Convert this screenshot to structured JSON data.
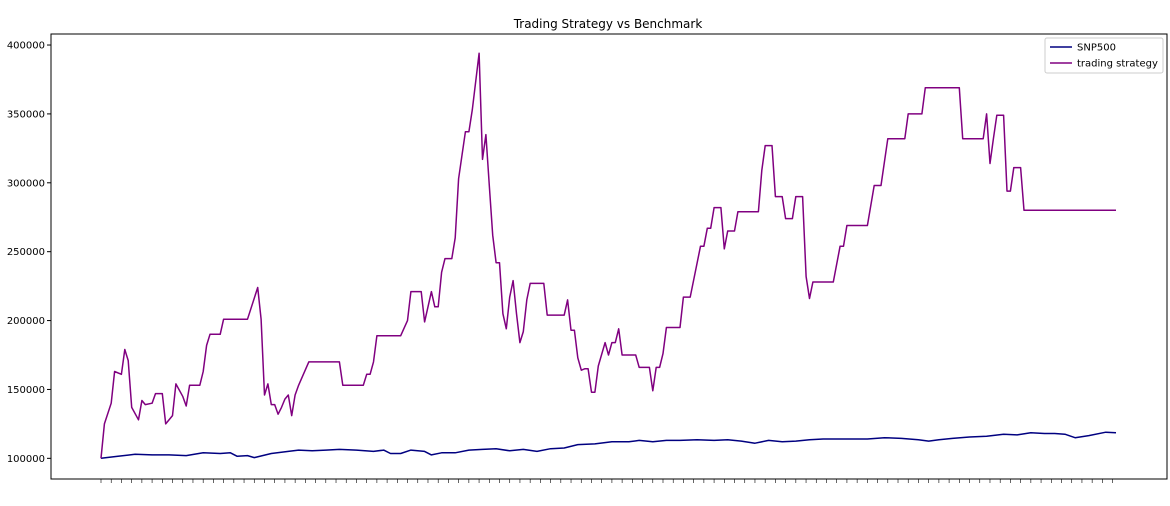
{
  "chart_data": {
    "type": "line",
    "title": "Trading Strategy vs Benchmark",
    "xlabel": "",
    "ylabel": "",
    "ylim": [
      85000,
      408000
    ],
    "yticks": [
      100000,
      150000,
      200000,
      250000,
      300000,
      350000,
      400000
    ],
    "ytick_labels": [
      "100000",
      "150000",
      "200000",
      "250000",
      "300000",
      "350000",
      "400000"
    ],
    "legend_position": "top-right",
    "grid": false,
    "n_points": 298,
    "series": [
      {
        "name": "SNP500",
        "color": "#000080",
        "points": [
          [
            0,
            100000
          ],
          [
            5,
            101500
          ],
          [
            10,
            103000
          ],
          [
            15,
            102500
          ],
          [
            20,
            102500
          ],
          [
            25,
            102000
          ],
          [
            30,
            104000
          ],
          [
            35,
            103500
          ],
          [
            38,
            104000
          ],
          [
            40,
            101500
          ],
          [
            43,
            102000
          ],
          [
            45,
            100500
          ],
          [
            50,
            103500
          ],
          [
            55,
            105000
          ],
          [
            58,
            106000
          ],
          [
            62,
            105500
          ],
          [
            66,
            106000
          ],
          [
            70,
            106500
          ],
          [
            75,
            106000
          ],
          [
            80,
            105000
          ],
          [
            83,
            106000
          ],
          [
            85,
            103500
          ],
          [
            88,
            103500
          ],
          [
            91,
            106000
          ],
          [
            95,
            105000
          ],
          [
            97,
            102500
          ],
          [
            100,
            104000
          ],
          [
            104,
            104000
          ],
          [
            108,
            106000
          ],
          [
            112,
            106500
          ],
          [
            116,
            107000
          ],
          [
            120,
            105500
          ],
          [
            124,
            106500
          ],
          [
            128,
            105000
          ],
          [
            132,
            107000
          ],
          [
            136,
            107500
          ],
          [
            140,
            110000
          ],
          [
            145,
            110500
          ],
          [
            150,
            112000
          ],
          [
            155,
            112000
          ],
          [
            158,
            113000
          ],
          [
            162,
            112000
          ],
          [
            166,
            113000
          ],
          [
            170,
            113000
          ],
          [
            175,
            113500
          ],
          [
            180,
            113000
          ],
          [
            184,
            113500
          ],
          [
            188,
            112500
          ],
          [
            192,
            111000
          ],
          [
            196,
            113000
          ],
          [
            200,
            112000
          ],
          [
            204,
            112500
          ],
          [
            208,
            113500
          ],
          [
            212,
            114000
          ],
          [
            216,
            114000
          ],
          [
            220,
            114000
          ],
          [
            225,
            114000
          ],
          [
            230,
            115000
          ],
          [
            235,
            114500
          ],
          [
            240,
            113500
          ],
          [
            243,
            112500
          ],
          [
            246,
            113500
          ],
          [
            250,
            114500
          ],
          [
            255,
            115500
          ],
          [
            260,
            116000
          ],
          [
            265,
            117500
          ],
          [
            269,
            117000
          ],
          [
            273,
            118500
          ],
          [
            277,
            118000
          ],
          [
            280,
            118000
          ],
          [
            283,
            117500
          ],
          [
            286,
            115000
          ],
          [
            290,
            116500
          ],
          [
            295,
            119000
          ],
          [
            298,
            118500
          ]
        ]
      },
      {
        "name": "trading strategy",
        "color": "#800080",
        "points": [
          [
            0,
            100000
          ],
          [
            1,
            125000
          ],
          [
            3,
            140000
          ],
          [
            4,
            163000
          ],
          [
            6,
            161000
          ],
          [
            7,
            179000
          ],
          [
            8,
            171000
          ],
          [
            9,
            137000
          ],
          [
            11,
            128000
          ],
          [
            12,
            142000
          ],
          [
            13,
            139000
          ],
          [
            15,
            140000
          ],
          [
            16,
            147000
          ],
          [
            18,
            147000
          ],
          [
            19,
            125000
          ],
          [
            21,
            131000
          ],
          [
            22,
            154000
          ],
          [
            24,
            145000
          ],
          [
            25,
            138000
          ],
          [
            26,
            153000
          ],
          [
            29,
            153000
          ],
          [
            30,
            163000
          ],
          [
            31,
            182000
          ],
          [
            32,
            190000
          ],
          [
            35,
            190000
          ],
          [
            36,
            201000
          ],
          [
            43,
            201000
          ],
          [
            46,
            224000
          ],
          [
            47,
            201000
          ],
          [
            48,
            146000
          ],
          [
            49,
            154000
          ],
          [
            50,
            139000
          ],
          [
            51,
            139000
          ],
          [
            52,
            132000
          ],
          [
            53,
            137000
          ],
          [
            54,
            143000
          ],
          [
            55,
            146000
          ],
          [
            56,
            131000
          ],
          [
            57,
            146000
          ],
          [
            58,
            153000
          ],
          [
            61,
            170000
          ],
          [
            70,
            170000
          ],
          [
            71,
            153000
          ],
          [
            77,
            153000
          ],
          [
            78,
            161000
          ],
          [
            79,
            161000
          ],
          [
            80,
            170000
          ],
          [
            81,
            189000
          ],
          [
            88,
            189000
          ],
          [
            90,
            200000
          ],
          [
            91,
            221000
          ],
          [
            94,
            221000
          ],
          [
            95,
            199000
          ],
          [
            96,
            210000
          ],
          [
            97,
            221000
          ],
          [
            98,
            210000
          ],
          [
            99,
            210000
          ],
          [
            100,
            235000
          ],
          [
            101,
            245000
          ],
          [
            103,
            245000
          ],
          [
            104,
            260000
          ],
          [
            105,
            303000
          ],
          [
            106,
            320000
          ],
          [
            107,
            337000
          ],
          [
            108,
            337000
          ],
          [
            109,
            353000
          ],
          [
            111,
            394000
          ],
          [
            112,
            317000
          ],
          [
            113,
            335000
          ],
          [
            114,
            298000
          ],
          [
            115,
            262000
          ],
          [
            116,
            242000
          ],
          [
            117,
            242000
          ],
          [
            118,
            205000
          ],
          [
            119,
            194000
          ],
          [
            120,
            217000
          ],
          [
            121,
            229000
          ],
          [
            122,
            205000
          ],
          [
            123,
            184000
          ],
          [
            124,
            192000
          ],
          [
            125,
            215000
          ],
          [
            126,
            227000
          ],
          [
            128,
            227000
          ],
          [
            130,
            227000
          ],
          [
            131,
            204000
          ],
          [
            132,
            204000
          ],
          [
            134,
            204000
          ],
          [
            136,
            204000
          ],
          [
            137,
            215000
          ],
          [
            138,
            193000
          ],
          [
            139,
            193000
          ],
          [
            140,
            173000
          ],
          [
            141,
            164000
          ],
          [
            142,
            165000
          ],
          [
            143,
            165000
          ],
          [
            144,
            148000
          ],
          [
            145,
            148000
          ],
          [
            146,
            167000
          ],
          [
            148,
            184000
          ],
          [
            149,
            175000
          ],
          [
            150,
            184000
          ],
          [
            151,
            184000
          ],
          [
            152,
            194000
          ],
          [
            153,
            175000
          ],
          [
            157,
            175000
          ],
          [
            158,
            166000
          ],
          [
            161,
            166000
          ],
          [
            162,
            149000
          ],
          [
            163,
            166000
          ],
          [
            164,
            166000
          ],
          [
            165,
            176000
          ],
          [
            166,
            195000
          ],
          [
            170,
            195000
          ],
          [
            171,
            217000
          ],
          [
            173,
            217000
          ],
          [
            176,
            254000
          ],
          [
            177,
            254000
          ],
          [
            178,
            267000
          ],
          [
            179,
            267000
          ],
          [
            180,
            282000
          ],
          [
            182,
            282000
          ],
          [
            183,
            252000
          ],
          [
            184,
            265000
          ],
          [
            186,
            265000
          ],
          [
            187,
            279000
          ],
          [
            193,
            279000
          ],
          [
            194,
            309000
          ],
          [
            195,
            327000
          ],
          [
            197,
            327000
          ],
          [
            198,
            290000
          ],
          [
            200,
            290000
          ],
          [
            201,
            274000
          ],
          [
            203,
            274000
          ],
          [
            204,
            290000
          ],
          [
            206,
            290000
          ],
          [
            207,
            232000
          ],
          [
            208,
            216000
          ],
          [
            209,
            228000
          ],
          [
            215,
            228000
          ],
          [
            217,
            254000
          ],
          [
            218,
            254000
          ],
          [
            219,
            269000
          ],
          [
            225,
            269000
          ],
          [
            227,
            298000
          ],
          [
            229,
            298000
          ],
          [
            231,
            332000
          ],
          [
            236,
            332000
          ],
          [
            237,
            350000
          ],
          [
            241,
            350000
          ],
          [
            242,
            369000
          ],
          [
            252,
            369000
          ],
          [
            253,
            332000
          ],
          [
            259,
            332000
          ],
          [
            260,
            350000
          ],
          [
            261,
            314000
          ],
          [
            262,
            332000
          ],
          [
            263,
            349000
          ],
          [
            265,
            349000
          ],
          [
            266,
            294000
          ],
          [
            267,
            294000
          ],
          [
            268,
            311000
          ],
          [
            270,
            311000
          ],
          [
            271,
            280000
          ],
          [
            298,
            280000
          ]
        ]
      }
    ]
  }
}
